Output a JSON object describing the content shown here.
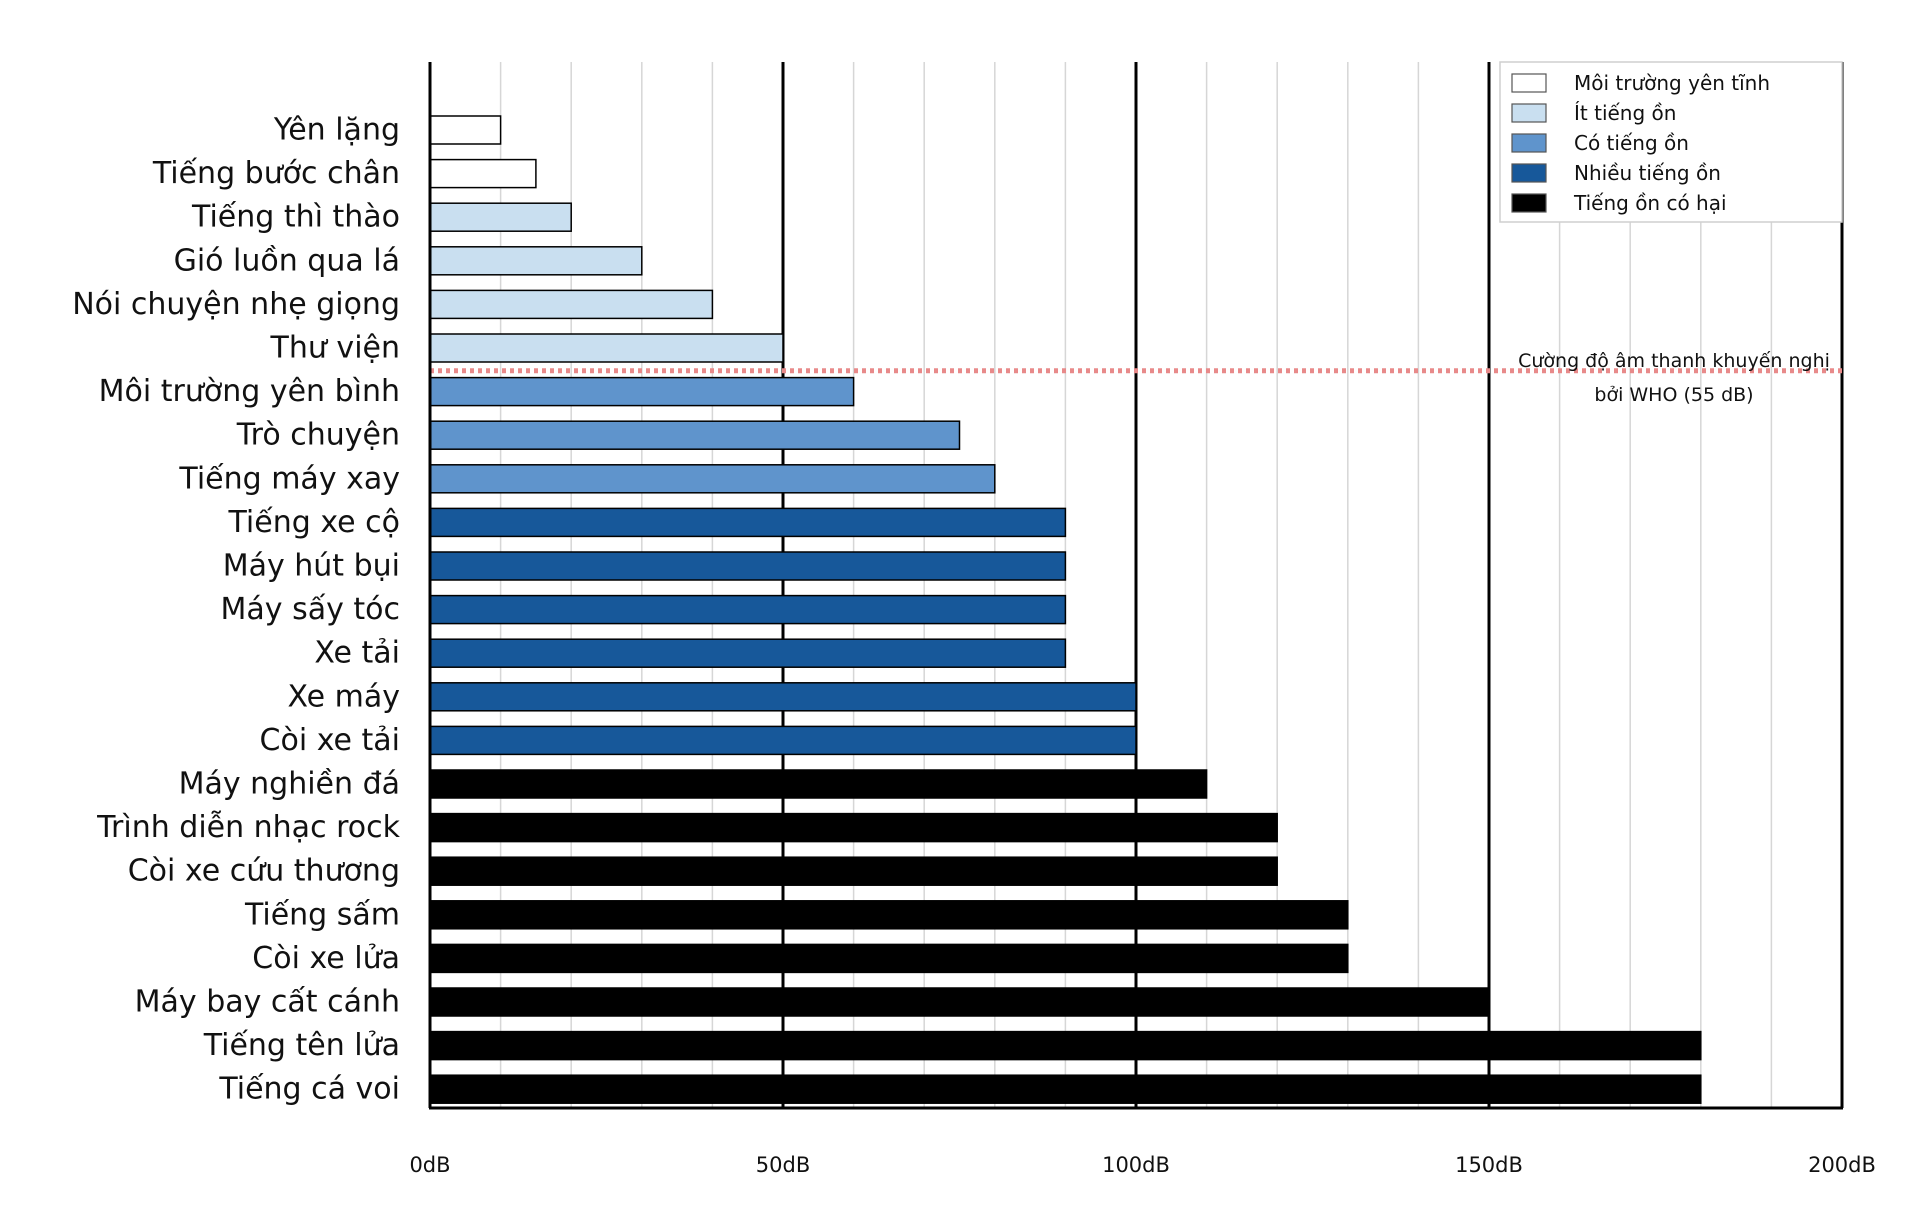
{
  "chart_data": {
    "type": "bar",
    "orientation": "horizontal",
    "categories": [
      "Yên lặng",
      "Tiếng bước chân",
      "Tiếng thì thào",
      "Gió luồn qua lá",
      "Nói chuyện nhẹ giọng",
      "Thư viện",
      "Môi trường yên bình",
      "Trò chuyện",
      "Tiếng máy xay",
      "Tiếng xe cộ",
      "Máy hút bụi",
      "Máy sấy tóc",
      "Xe tải",
      "Xe máy",
      "Còi xe tải",
      "Máy nghiền đá",
      "Trình diễn nhạc rock",
      "Còi xe cứu thương",
      "Tiếng sấm",
      "Còi xe lửa",
      "Máy bay cất cánh",
      "Tiếng tên lửa",
      "Tiếng cá voi"
    ],
    "values": [
      10,
      15,
      20,
      30,
      40,
      50,
      60,
      75,
      80,
      90,
      90,
      90,
      90,
      100,
      100,
      110,
      120,
      120,
      130,
      130,
      150,
      180,
      180
    ],
    "classes": [
      0,
      0,
      1,
      1,
      1,
      1,
      2,
      2,
      2,
      3,
      3,
      3,
      3,
      3,
      3,
      4,
      4,
      4,
      4,
      4,
      4,
      4,
      4
    ],
    "legend": [
      {
        "name": "Môi trường yên tĩnh",
        "color": "#ffffff"
      },
      {
        "name": "Ít tiếng ồn",
        "color": "#c9dff0"
      },
      {
        "name": "Có tiếng ồn",
        "color": "#5f94cc"
      },
      {
        "name": "Nhiều tiếng ồn",
        "color": "#17589a"
      },
      {
        "name": "Tiếng ồn có hại",
        "color": "#000000"
      }
    ],
    "legend_position": "top-right",
    "xlim": [
      0,
      200
    ],
    "xticks": [
      0,
      50,
      100,
      150,
      200
    ],
    "xtick_labels": [
      "0dB",
      "50dB",
      "100dB",
      "150dB",
      "200dB"
    ],
    "minor_grid_step": 10,
    "grid": true,
    "reference_line": {
      "value": 55,
      "color": "#e88a8a",
      "style": "dotted",
      "label_lines": [
        "Cường độ âm thanh khuyến nghị",
        "bởi WHO (55 dB)"
      ]
    }
  }
}
